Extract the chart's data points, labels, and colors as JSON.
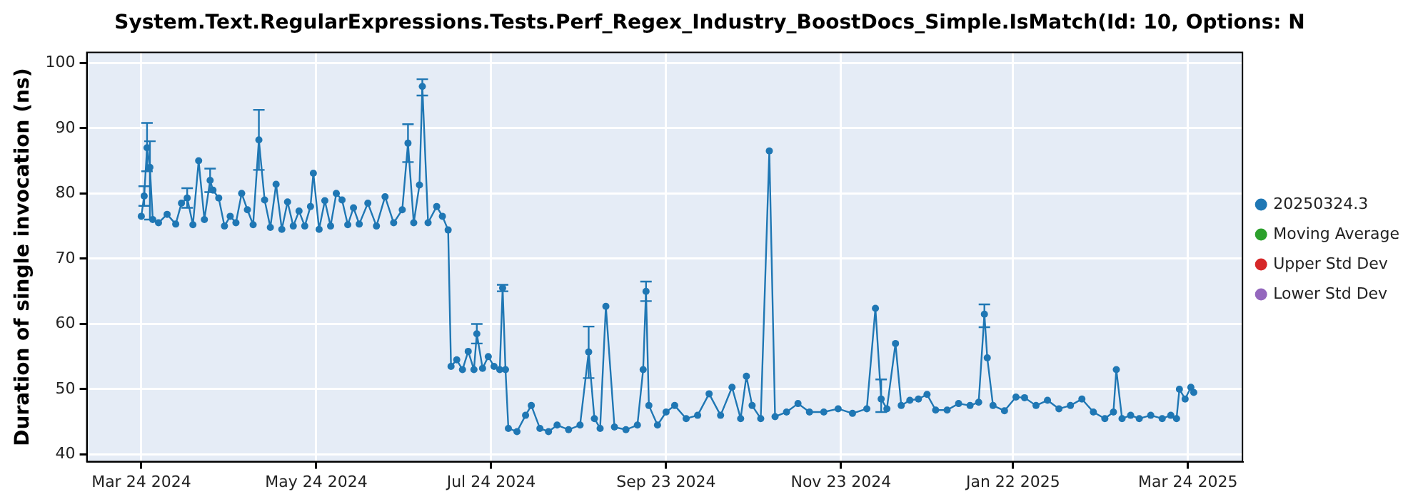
{
  "chart_data": {
    "type": "line",
    "title": "System.Text.RegularExpressions.Tests.Perf_Regex_Industry_BoostDocs_Simple.IsMatch(Id: 10, Options: N",
    "ylabel": "Duration of single invocation (ns)",
    "xlim": [
      "2024-03-05",
      "2025-04-12"
    ],
    "xticks": [
      {
        "value": "2024-03-24",
        "label": "Mar 24 2024"
      },
      {
        "value": "2024-05-24",
        "label": "May 24 2024"
      },
      {
        "value": "2024-07-24",
        "label": "Jul 24 2024"
      },
      {
        "value": "2024-09-23",
        "label": "Sep 23 2024"
      },
      {
        "value": "2024-11-23",
        "label": "Nov 23 2024"
      },
      {
        "value": "2025-01-22",
        "label": "Jan 22 2025"
      },
      {
        "value": "2025-03-24",
        "label": "Mar 24 2025"
      }
    ],
    "ylim": [
      38.9,
      101.6
    ],
    "yticks": [
      40,
      50,
      60,
      70,
      80,
      90,
      100
    ],
    "grid": true,
    "legend": "right",
    "marker": "circle",
    "line_style": "solid",
    "series": [
      {
        "name": "20250324.3",
        "color": "#1f77b4",
        "x": [
          "2024-03-24",
          "2024-03-25",
          "2024-03-26",
          "2024-03-27",
          "2024-03-28",
          "2024-03-30",
          "2024-04-02",
          "2024-04-05",
          "2024-04-07",
          "2024-04-09",
          "2024-04-11",
          "2024-04-13",
          "2024-04-15",
          "2024-04-17",
          "2024-04-18",
          "2024-04-20",
          "2024-04-22",
          "2024-04-24",
          "2024-04-26",
          "2024-04-28",
          "2024-04-30",
          "2024-05-02",
          "2024-05-04",
          "2024-05-06",
          "2024-05-08",
          "2024-05-10",
          "2024-05-12",
          "2024-05-14",
          "2024-05-16",
          "2024-05-18",
          "2024-05-20",
          "2024-05-22",
          "2024-05-23",
          "2024-05-25",
          "2024-05-27",
          "2024-05-29",
          "2024-05-31",
          "2024-06-02",
          "2024-06-04",
          "2024-06-06",
          "2024-06-08",
          "2024-06-11",
          "2024-06-14",
          "2024-06-17",
          "2024-06-20",
          "2024-06-23",
          "2024-06-25",
          "2024-06-27",
          "2024-06-29",
          "2024-06-30",
          "2024-07-02",
          "2024-07-05",
          "2024-07-07",
          "2024-07-09",
          "2024-07-10",
          "2024-07-12",
          "2024-07-14",
          "2024-07-16",
          "2024-07-18",
          "2024-07-19",
          "2024-07-21",
          "2024-07-23",
          "2024-07-25",
          "2024-07-27",
          "2024-07-28",
          "2024-07-29",
          "2024-07-30",
          "2024-08-02",
          "2024-08-05",
          "2024-08-07",
          "2024-08-10",
          "2024-08-13",
          "2024-08-16",
          "2024-08-20",
          "2024-08-24",
          "2024-08-27",
          "2024-08-29",
          "2024-08-31",
          "2024-09-02",
          "2024-09-05",
          "2024-09-09",
          "2024-09-13",
          "2024-09-15",
          "2024-09-16",
          "2024-09-17",
          "2024-09-20",
          "2024-09-23",
          "2024-09-26",
          "2024-09-30",
          "2024-10-04",
          "2024-10-08",
          "2024-10-12",
          "2024-10-16",
          "2024-10-19",
          "2024-10-21",
          "2024-10-23",
          "2024-10-26",
          "2024-10-29",
          "2024-10-31",
          "2024-11-04",
          "2024-11-08",
          "2024-11-12",
          "2024-11-17",
          "2024-11-22",
          "2024-11-27",
          "2024-12-02",
          "2024-12-05",
          "2024-12-07",
          "2024-12-09",
          "2024-12-12",
          "2024-12-14",
          "2024-12-17",
          "2024-12-20",
          "2024-12-23",
          "2024-12-26",
          "2024-12-30",
          "2025-01-03",
          "2025-01-07",
          "2025-01-10",
          "2025-01-12",
          "2025-01-13",
          "2025-01-15",
          "2025-01-19",
          "2025-01-23",
          "2025-01-26",
          "2025-01-30",
          "2025-02-03",
          "2025-02-07",
          "2025-02-11",
          "2025-02-15",
          "2025-02-19",
          "2025-02-23",
          "2025-02-26",
          "2025-02-27",
          "2025-03-01",
          "2025-03-04",
          "2025-03-07",
          "2025-03-11",
          "2025-03-15",
          "2025-03-18",
          "2025-03-20",
          "2025-03-21",
          "2025-03-23",
          "2025-03-25",
          "2025-03-26"
        ],
        "values": [
          76.5,
          79.6,
          87,
          84,
          76,
          75.5,
          76.8,
          75.3,
          78.5,
          79.3,
          75.2,
          85,
          76,
          82,
          80.5,
          79.3,
          75,
          76.5,
          75.5,
          80,
          77.5,
          75.2,
          88.2,
          79,
          74.8,
          81.4,
          74.5,
          78.7,
          75,
          77.3,
          75,
          78,
          83.1,
          74.5,
          78.9,
          75,
          80,
          79,
          75.2,
          77.8,
          75.3,
          78.5,
          75,
          79.5,
          75.5,
          77.5,
          87.7,
          75.5,
          81.3,
          96.4,
          75.5,
          78,
          76.5,
          74.4,
          53.5,
          54.5,
          53,
          55.8,
          53,
          58.5,
          53.2,
          55,
          53.5,
          53,
          65.5,
          53,
          44,
          43.5,
          46,
          47.5,
          44,
          43.5,
          44.5,
          43.8,
          44.5,
          55.7,
          45.5,
          44,
          62.7,
          44.2,
          43.8,
          44.5,
          53,
          65,
          47.5,
          44.5,
          46.5,
          47.5,
          45.5,
          46,
          49.3,
          46,
          50.3,
          45.5,
          52,
          47.5,
          45.5,
          86.5,
          45.8,
          46.5,
          47.8,
          46.5,
          46.5,
          47,
          46.3,
          47,
          62.4,
          48.5,
          47,
          57,
          47.5,
          48.3,
          48.5,
          49.2,
          46.8,
          46.8,
          47.8,
          47.5,
          48,
          61.5,
          54.8,
          47.5,
          46.7,
          48.8,
          48.7,
          47.5,
          48.3,
          47,
          47.5,
          48.5,
          46.5,
          45.5,
          46.5,
          53,
          45.5,
          46,
          45.5,
          46,
          45.5,
          46,
          45.5,
          50,
          48.5,
          50.3,
          49.5
        ],
        "errors": [
          null,
          1.5,
          [
            83.4,
            90.8
          ],
          [
            76,
            88
          ],
          null,
          null,
          null,
          null,
          null,
          1.5,
          null,
          null,
          null,
          1.8,
          null,
          null,
          null,
          null,
          null,
          null,
          null,
          null,
          [
            83.6,
            92.8
          ],
          null,
          null,
          null,
          null,
          null,
          null,
          null,
          null,
          null,
          null,
          null,
          null,
          null,
          null,
          null,
          null,
          null,
          null,
          null,
          null,
          null,
          null,
          null,
          [
            84.8,
            90.6
          ],
          null,
          null,
          [
            95,
            97.5
          ],
          null,
          null,
          null,
          null,
          null,
          null,
          null,
          null,
          null,
          1.5,
          null,
          null,
          null,
          null,
          0.5,
          null,
          null,
          null,
          null,
          null,
          null,
          null,
          null,
          null,
          null,
          [
            51.7,
            59.6
          ],
          null,
          null,
          null,
          null,
          null,
          null,
          null,
          1.5,
          null,
          null,
          null,
          null,
          null,
          null,
          null,
          null,
          null,
          null,
          null,
          null,
          null,
          null,
          null,
          null,
          null,
          null,
          null,
          null,
          null,
          null,
          null,
          [
            46.5,
            51.5
          ],
          null,
          null,
          null,
          null,
          null,
          null,
          null,
          null,
          null,
          null,
          null,
          [
            59.5,
            63
          ],
          null,
          null,
          null,
          null,
          null,
          null,
          null,
          null,
          null,
          null,
          null,
          null,
          null,
          null,
          null,
          null,
          null,
          null,
          null,
          null,
          null,
          null,
          null,
          null,
          null
        ]
      },
      {
        "name": "Moving Average",
        "color": "#2ca02c"
      },
      {
        "name": "Upper Std Dev",
        "color": "#d62728"
      },
      {
        "name": "Lower Std Dev",
        "color": "#9467bd"
      }
    ]
  }
}
